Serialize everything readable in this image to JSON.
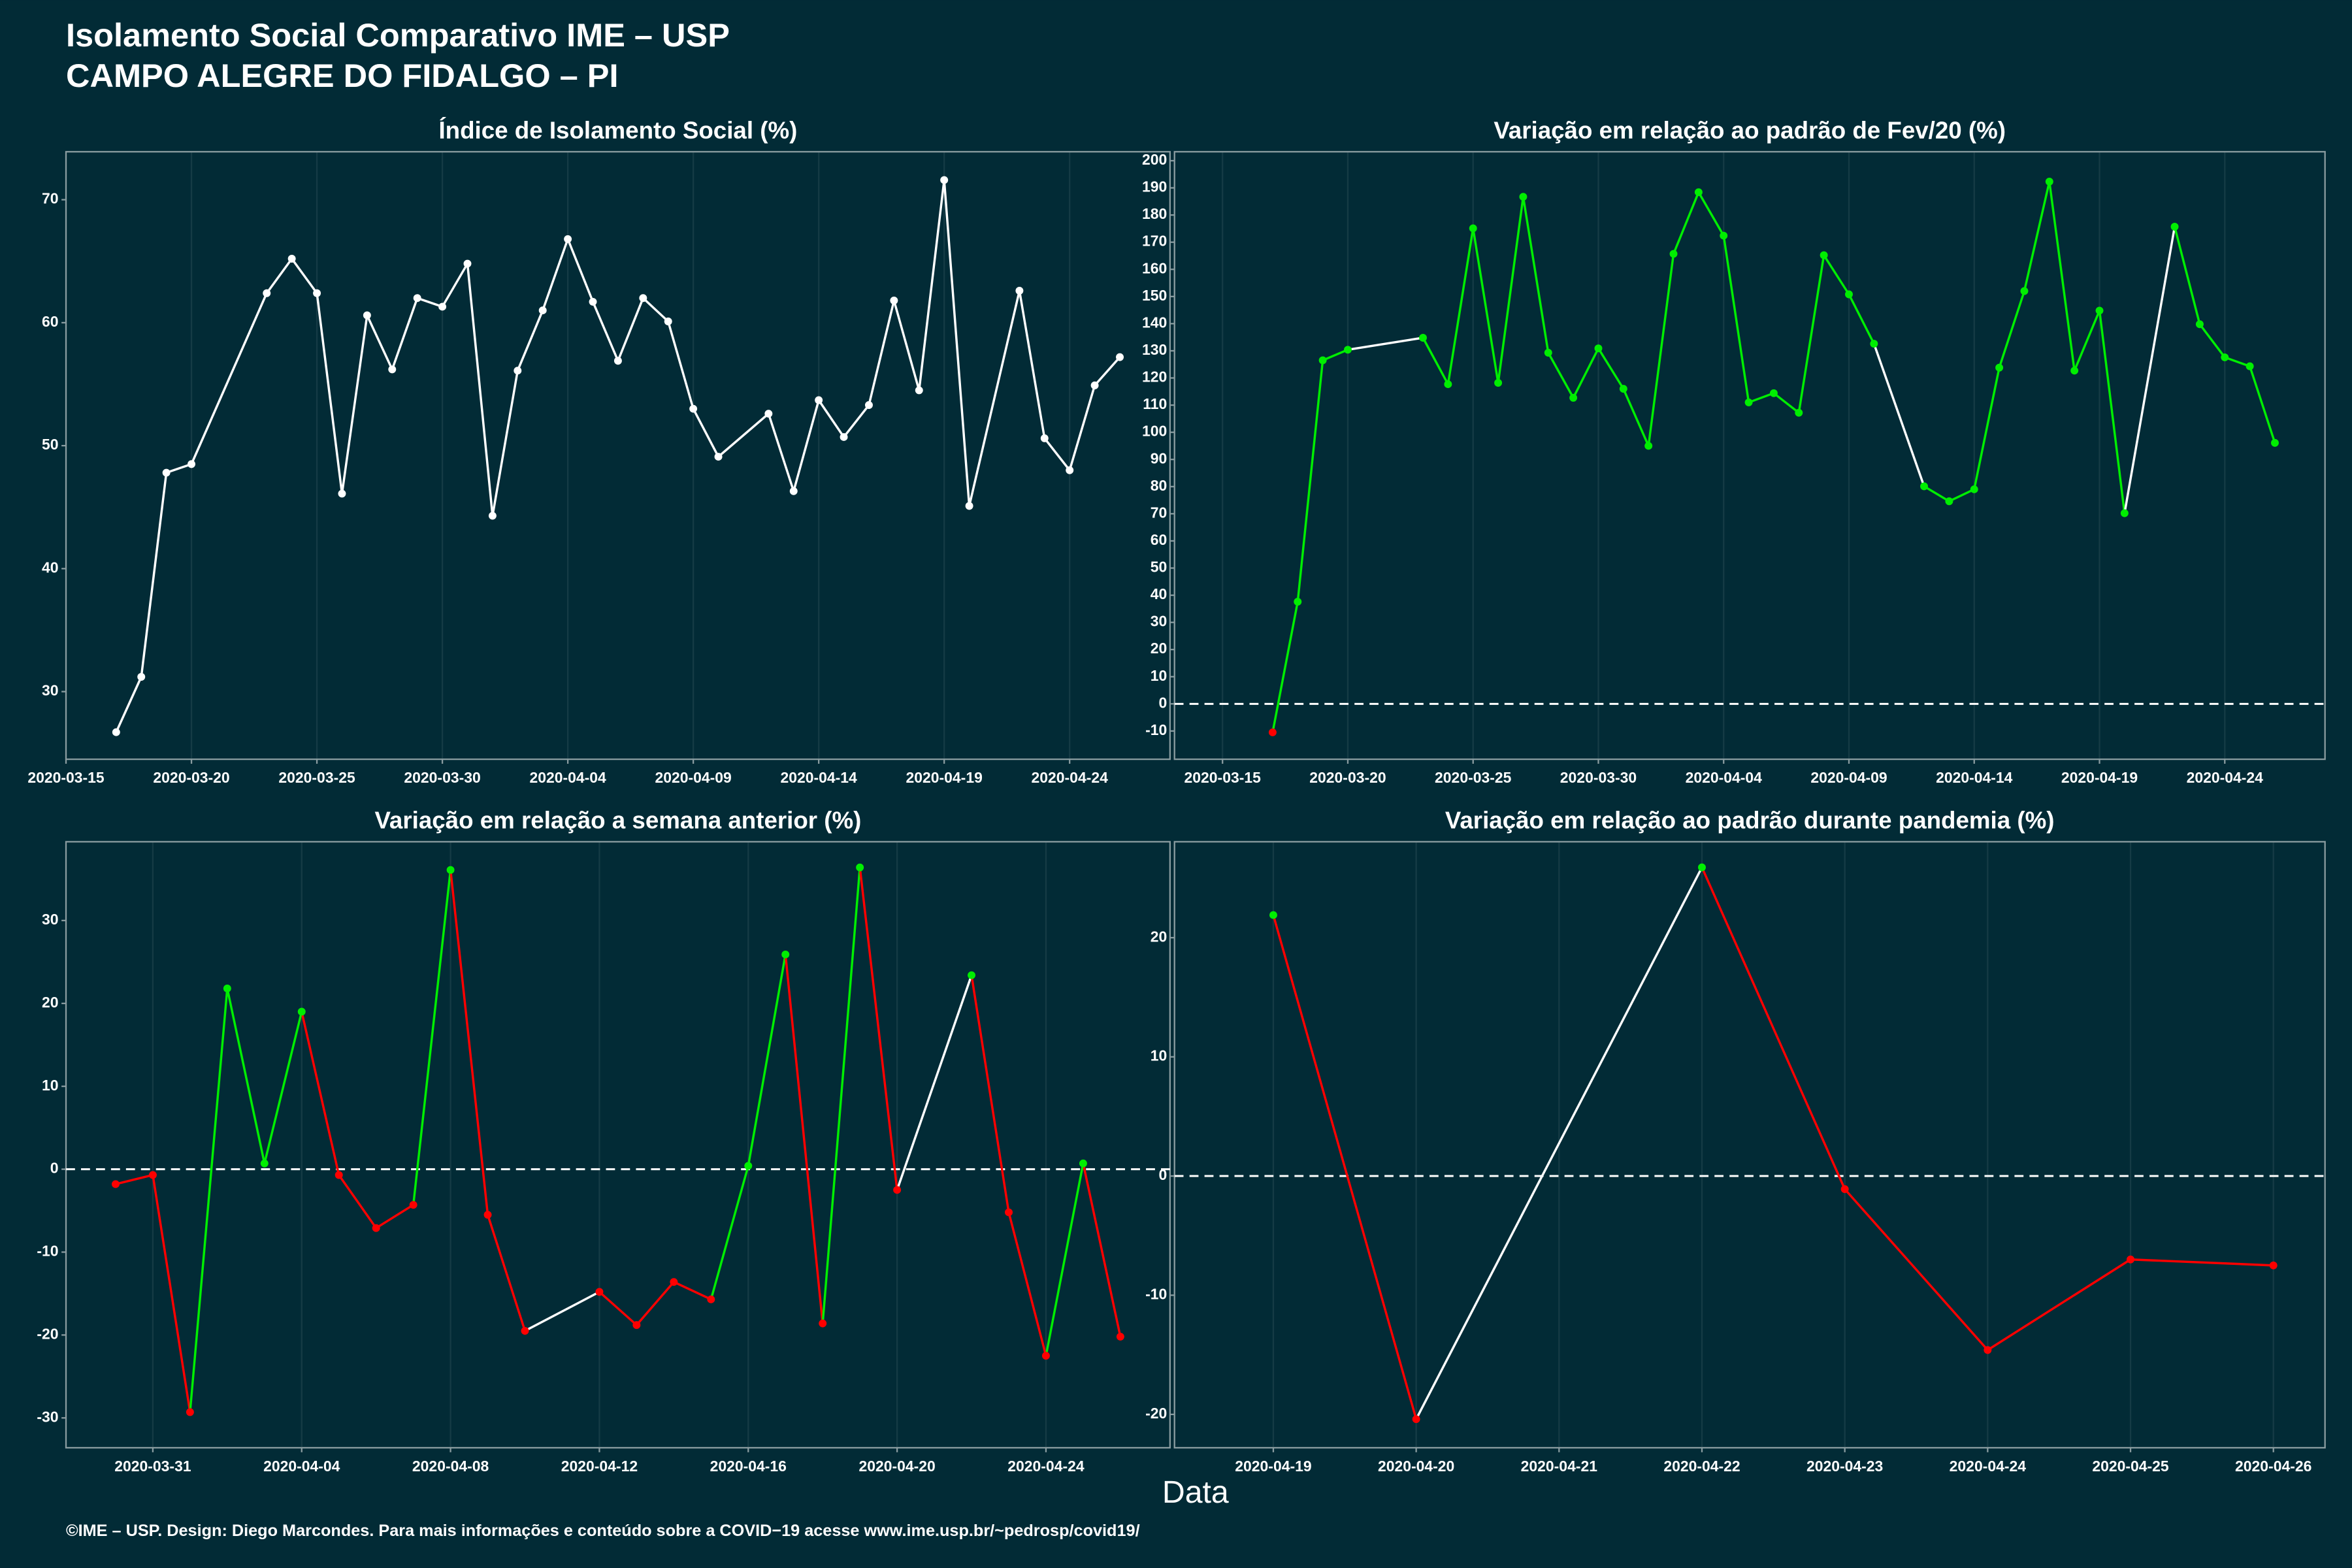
{
  "title": "Isolamento Social Comparativo IME – USP",
  "subtitle": "CAMPO ALEGRE DO FIDALGO – PI",
  "x_label": "Data",
  "footer": "©IME – USP. Design: Diego Marcondes. Para mais informações e conteúdo sobre a COVID−19 acesse www.ime.usp.br/~pedrosp/covid19/",
  "chart_data": [
    {
      "type": "line",
      "title": "Índice de Isolamento Social (%)",
      "color": "#ffffff",
      "x": [
        "2020-03-17",
        "2020-03-18",
        "2020-03-19",
        "2020-03-20",
        "2020-03-23",
        "2020-03-24",
        "2020-03-25",
        "2020-03-26",
        "2020-03-27",
        "2020-03-28",
        "2020-03-29",
        "2020-03-30",
        "2020-03-31",
        "2020-04-01",
        "2020-04-02",
        "2020-04-03",
        "2020-04-04",
        "2020-04-05",
        "2020-04-06",
        "2020-04-07",
        "2020-04-08",
        "2020-04-09",
        "2020-04-10",
        "2020-04-12",
        "2020-04-13",
        "2020-04-14",
        "2020-04-15",
        "2020-04-16",
        "2020-04-17",
        "2020-04-18",
        "2020-04-19",
        "2020-04-20",
        "2020-04-22",
        "2020-04-23",
        "2020-04-24",
        "2020-04-25",
        "2020-04-26"
      ],
      "values": [
        26.7,
        31.2,
        47.8,
        48.5,
        62.4,
        65.2,
        62.4,
        46.1,
        60.6,
        56.2,
        62.0,
        61.3,
        64.8,
        44.3,
        56.1,
        61.0,
        66.8,
        61.7,
        56.9,
        62.0,
        60.1,
        53.0,
        49.1,
        52.6,
        46.3,
        53.7,
        50.7,
        53.3,
        61.8,
        54.5,
        71.6,
        45.1,
        62.6,
        50.6,
        48.0,
        54.9,
        57.2
      ],
      "xlim": [
        "2020-03-15T00:00Z",
        "2020-04-28T00:00Z"
      ],
      "xticks": [
        "2020-03-15",
        "2020-03-20",
        "2020-03-25",
        "2020-03-30",
        "2020-04-04",
        "2020-04-09",
        "2020-04-14",
        "2020-04-19",
        "2020-04-24"
      ],
      "ylim": [
        24.5,
        73.9
      ],
      "yticks": [
        30,
        40,
        50,
        60,
        70
      ]
    },
    {
      "type": "line",
      "title": "Variação em relação ao padrão de Fev/20 (%)",
      "positive_color": "#00ee00",
      "negative_color": "#ff0000",
      "gap_color": "#ffffff",
      "hline": 0,
      "x": [
        "2020-03-17",
        "2020-03-18",
        "2020-03-19",
        "2020-03-20",
        "2020-03-23",
        "2020-03-24",
        "2020-03-25",
        "2020-03-26",
        "2020-03-27",
        "2020-03-28",
        "2020-03-29",
        "2020-03-30",
        "2020-03-31",
        "2020-04-01",
        "2020-04-02",
        "2020-04-03",
        "2020-04-04",
        "2020-04-05",
        "2020-04-06",
        "2020-04-07",
        "2020-04-08",
        "2020-04-09",
        "2020-04-10",
        "2020-04-12",
        "2020-04-13",
        "2020-04-14",
        "2020-04-15",
        "2020-04-16",
        "2020-04-17",
        "2020-04-18",
        "2020-04-19",
        "2020-04-20",
        "2020-04-22",
        "2020-04-23",
        "2020-04-24",
        "2020-04-25",
        "2020-04-26"
      ],
      "values": [
        -10.5,
        37.6,
        126.5,
        130.4,
        134.8,
        117.7,
        175.1,
        118.2,
        186.7,
        129.3,
        112.7,
        130.9,
        116.0,
        95.0,
        165.7,
        188.4,
        172.4,
        111.0,
        114.4,
        107.2,
        165.2,
        150.8,
        132.6,
        80.1,
        74.6,
        79.0,
        123.8,
        152.0,
        192.3,
        122.7,
        144.8,
        70.2,
        175.7,
        139.8,
        127.6,
        124.3,
        96.1
      ],
      "xlim": [
        "2020-03-13T02:00Z",
        "2020-04-28T00:00Z"
      ],
      "xticks": [
        "2020-03-15",
        "2020-03-20",
        "2020-03-25",
        "2020-03-30",
        "2020-04-04",
        "2020-04-09",
        "2020-04-14",
        "2020-04-19",
        "2020-04-24"
      ],
      "ylim": [
        -20.4,
        203.3
      ],
      "yticks": [
        -10,
        0,
        10,
        20,
        30,
        40,
        50,
        60,
        70,
        80,
        90,
        100,
        110,
        120,
        130,
        140,
        150,
        160,
        170,
        180,
        190,
        200
      ]
    },
    {
      "type": "line",
      "title": "Variação em relação a semana anterior (%)",
      "positive_color": "#00ee00",
      "negative_color": "#ff0000",
      "gap_color": "#ffffff",
      "hline": 0,
      "x": [
        "2020-03-30",
        "2020-03-31",
        "2020-04-01",
        "2020-04-02",
        "2020-04-03",
        "2020-04-04",
        "2020-04-05",
        "2020-04-06",
        "2020-04-07",
        "2020-04-08",
        "2020-04-09",
        "2020-04-10",
        "2020-04-12",
        "2020-04-13",
        "2020-04-14",
        "2020-04-15",
        "2020-04-16",
        "2020-04-17",
        "2020-04-18",
        "2020-04-19",
        "2020-04-20",
        "2020-04-22",
        "2020-04-23",
        "2020-04-24",
        "2020-04-25",
        "2020-04-26"
      ],
      "values": [
        -1.8,
        -0.7,
        -29.3,
        21.8,
        0.7,
        19.0,
        -0.7,
        -7.1,
        -4.3,
        36.1,
        -5.5,
        -19.5,
        -14.8,
        -18.8,
        -13.6,
        -15.7,
        0.4,
        25.9,
        -18.6,
        36.4,
        -2.5,
        23.4,
        -5.2,
        -22.5,
        0.7,
        -20.2
      ],
      "xlim": [
        "2020-03-28T16:00Z",
        "2020-04-27T08:00Z"
      ],
      "xticks": [
        "2020-03-31",
        "2020-04-04",
        "2020-04-08",
        "2020-04-12",
        "2020-04-16",
        "2020-04-20",
        "2020-04-24"
      ],
      "ylim": [
        -33.6,
        39.5
      ],
      "yticks": [
        -30,
        -20,
        -10,
        0,
        10,
        20,
        30
      ]
    },
    {
      "type": "line",
      "title": "Variação em relação ao padrão durante pandemia (%)",
      "positive_color": "#00ee00",
      "negative_color": "#ff0000",
      "gap_color": "#ffffff",
      "hline": 0,
      "x": [
        "2020-04-19",
        "2020-04-20",
        "2020-04-22",
        "2020-04-23",
        "2020-04-24",
        "2020-04-25",
        "2020-04-26"
      ],
      "values": [
        21.9,
        -20.4,
        25.9,
        -1.1,
        -14.6,
        -7.0,
        -7.5
      ],
      "xlim": [
        "2020-04-18T07:24Z",
        "2020-04-26T08:40Z"
      ],
      "xticks": [
        "2020-04-19",
        "2020-04-20",
        "2020-04-21",
        "2020-04-22",
        "2020-04-23",
        "2020-04-24",
        "2020-04-25",
        "2020-04-26"
      ],
      "ylim": [
        -22.8,
        28.05
      ],
      "yticks": [
        -20,
        -10,
        0,
        10,
        20
      ]
    }
  ]
}
